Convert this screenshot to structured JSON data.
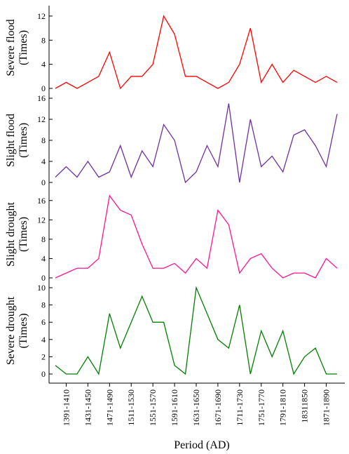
{
  "chart_data": {
    "type": "line",
    "xlabel": "Period (AD)",
    "x_tick_labels": [
      "1391-1410",
      "1431-1450",
      "1471-1490",
      "1511-1530",
      "1551-1570",
      "1591-1610",
      "1631-1650",
      "1671-1690",
      "1711-1730",
      "1751-1770",
      "1791-1810",
      "18311850",
      "1871-1890"
    ],
    "grid": false,
    "panels": [
      {
        "key": "severe_flood",
        "ylabel_line1": "Severe flood",
        "ylabel_line2": "(Times)",
        "ylim": [
          0,
          13.5
        ],
        "yticks": [
          0,
          4,
          8,
          12
        ],
        "color": "#ff0000",
        "values": [
          0,
          1,
          0,
          1,
          2,
          6,
          0,
          2,
          2,
          4,
          12,
          9,
          2,
          2,
          1,
          0,
          1,
          4,
          10,
          1,
          4,
          1,
          3,
          2,
          1,
          2,
          1
        ]
      },
      {
        "key": "slight_flood",
        "ylabel_line1": "Slight flood",
        "ylabel_line2": "(Times)",
        "ylim": [
          0,
          16
        ],
        "yticks": [
          0,
          4,
          8,
          12,
          16
        ],
        "color": "#7030a0",
        "values": [
          1,
          3,
          1,
          4,
          1,
          2,
          7,
          1,
          6,
          3,
          11,
          8,
          0,
          2,
          7,
          3,
          15,
          0,
          12,
          3,
          5,
          2,
          9,
          10,
          7,
          3,
          13
        ]
      },
      {
        "key": "slight_drought",
        "ylabel_line1": "Slight drought",
        "ylabel_line2": "(Times)",
        "ylim": [
          0,
          18
        ],
        "yticks": [
          0,
          4,
          8,
          12,
          16
        ],
        "color": "#ff1493",
        "values": [
          0,
          1,
          2,
          2,
          4,
          17,
          14,
          13,
          7,
          2,
          2,
          3,
          1,
          4,
          2,
          14,
          11,
          1,
          4,
          5,
          2,
          0,
          1,
          1,
          0,
          4,
          2
        ]
      },
      {
        "key": "severe_drought",
        "ylabel_line1": "Severe drought",
        "ylabel_line2": "(Times)",
        "ylim": [
          0,
          10
        ],
        "yticks": [
          0,
          2,
          4,
          6,
          8,
          10
        ],
        "color": "#008000",
        "values": [
          1,
          0,
          0,
          2,
          0,
          7,
          3,
          6,
          9,
          6,
          6,
          1,
          0,
          10,
          7,
          4,
          3,
          8,
          0,
          5,
          2,
          5,
          0,
          2,
          3,
          0,
          0
        ]
      }
    ]
  }
}
